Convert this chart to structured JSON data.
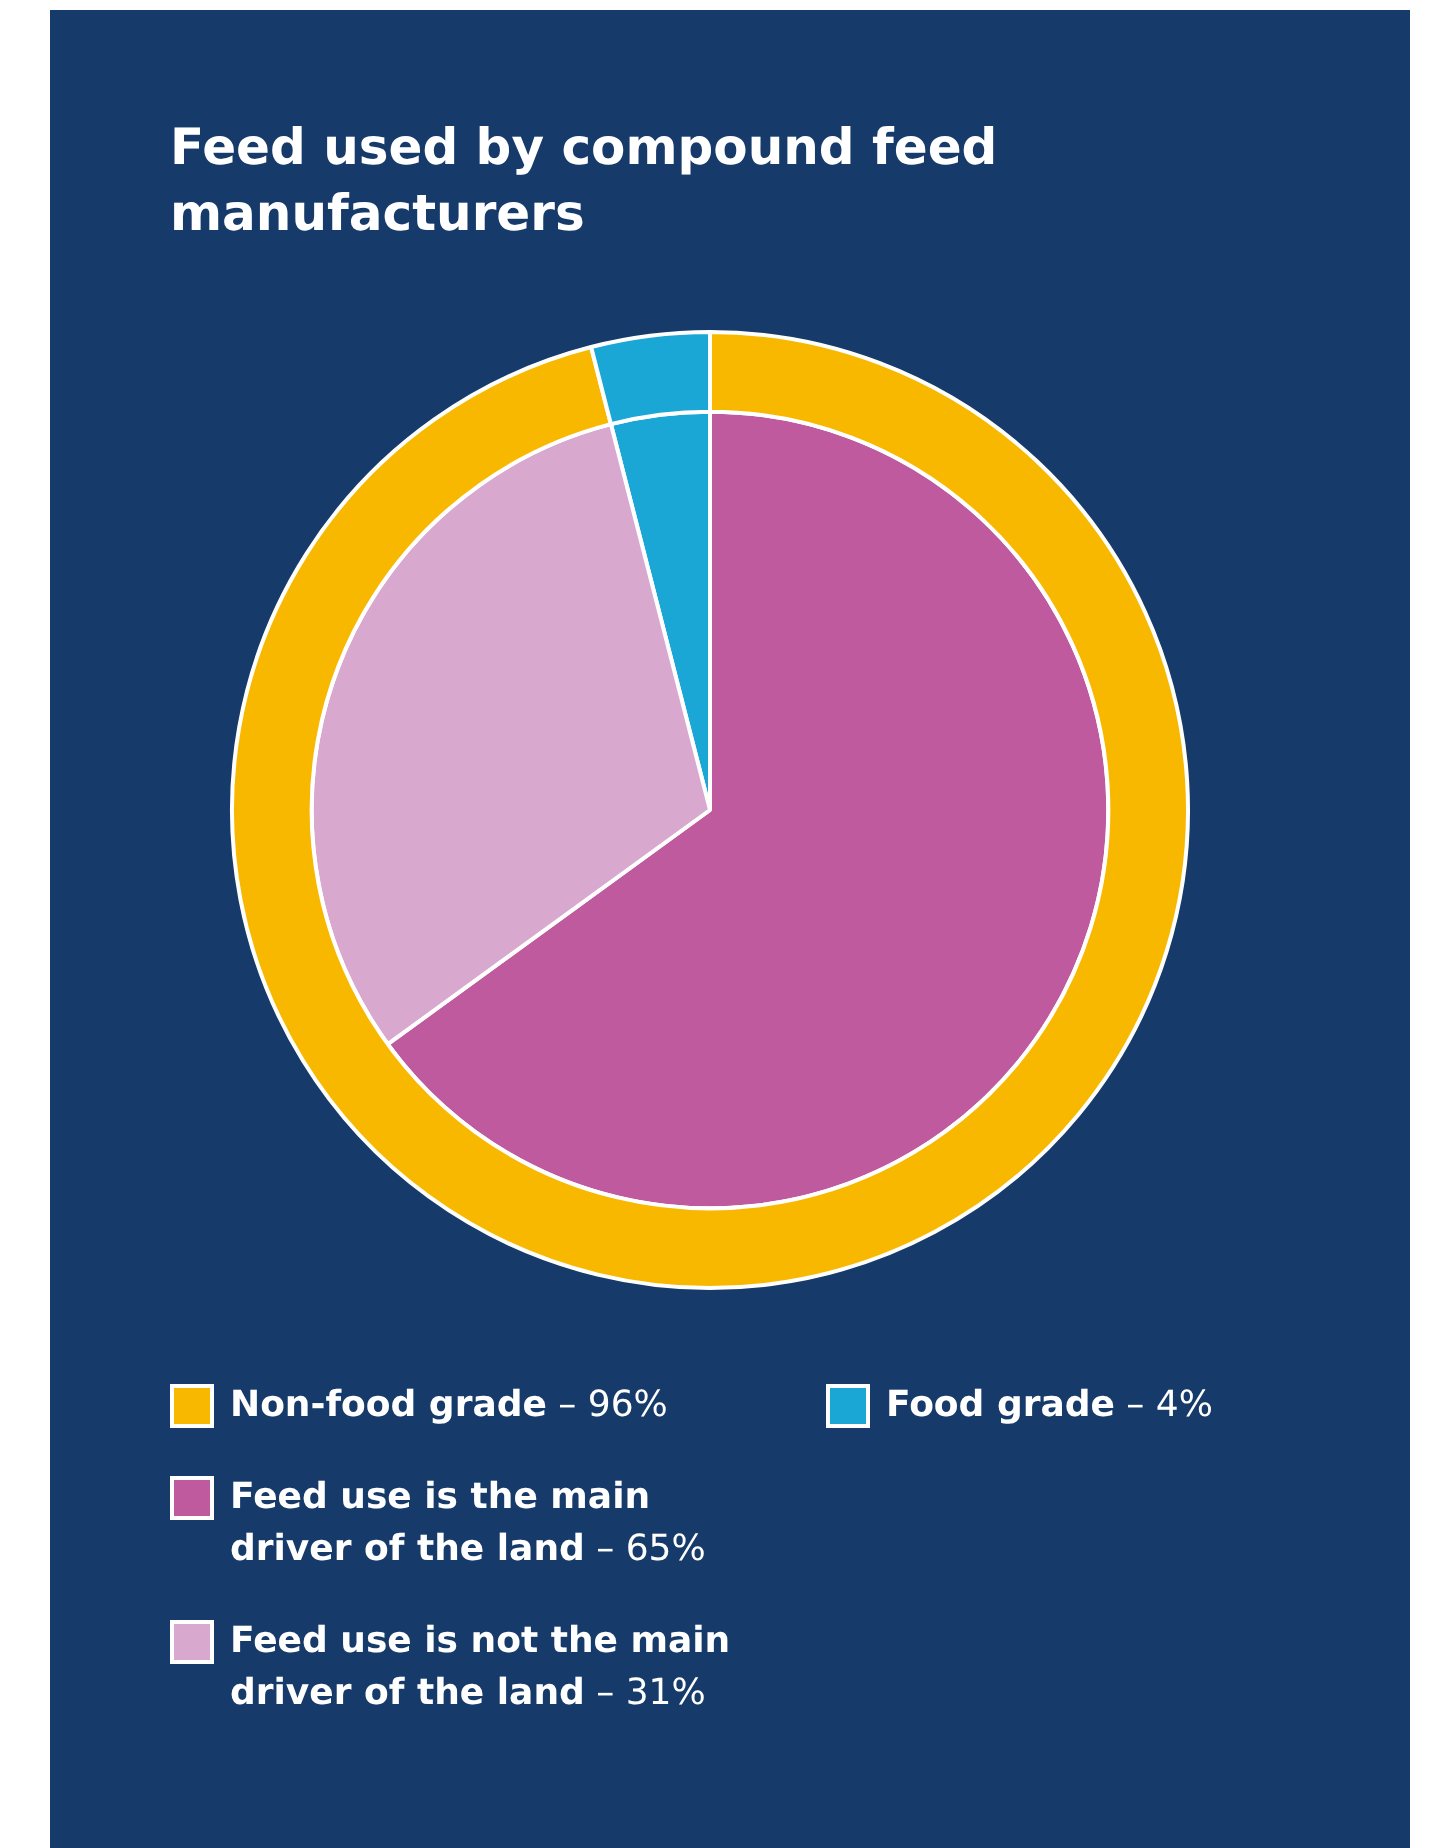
{
  "chart_data": {
    "type": "pie",
    "title": "Feed used by compound feed manufacturers",
    "categories": [
      "Non-food grade",
      "Food grade",
      "Feed use is the main driver of the land",
      "Feed use is not the main driver of the land"
    ],
    "colors": [
      "#f9b800",
      "#1aa7d6",
      "#be5a9d",
      "#d8a8cf"
    ],
    "value_labels": [
      "– 96%",
      "– 4%",
      "– 65%",
      "– 31%"
    ],
    "series": [
      {
        "values": [
          96,
          4,
          null,
          null
        ]
      },
      {
        "values": [
          null,
          4,
          65,
          31
        ]
      }
    ],
    "legend": "bottom"
  }
}
